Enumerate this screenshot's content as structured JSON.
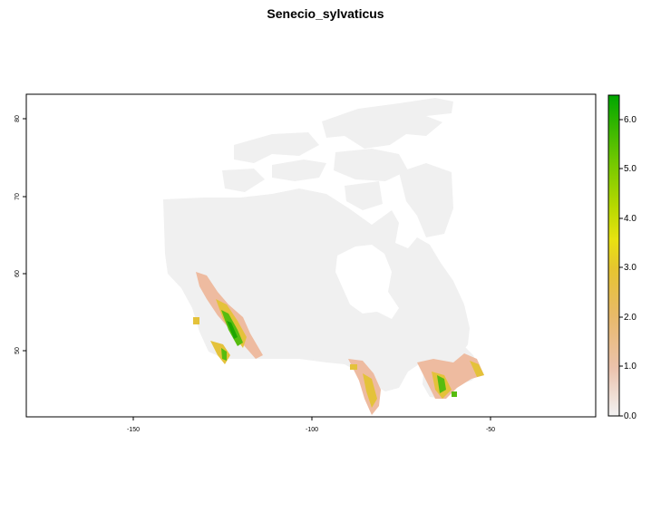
{
  "title": "Senecio_sylvaticus",
  "x_axis": {
    "ticks": [
      "-150",
      "-100",
      "-50"
    ],
    "tick_values": [
      -150,
      -100,
      -50
    ],
    "range": [
      -180,
      -25
    ]
  },
  "y_axis": {
    "ticks": [
      "50",
      "60",
      "70",
      "80"
    ],
    "tick_values": [
      50,
      60,
      70,
      80
    ],
    "range": [
      41.5,
      84
    ]
  },
  "legend": {
    "ticks": [
      "0.0",
      "1.0",
      "2.0",
      "3.0",
      "4.0",
      "5.0",
      "6.0"
    ],
    "tick_values": [
      0,
      1,
      2,
      3,
      4,
      5,
      6
    ],
    "range": [
      0,
      6.5
    ],
    "colors": [
      "#f2f2f2",
      "#ebc2ac",
      "#e8b96a",
      "#e6c52f",
      "#e8e210",
      "#8ed300",
      "#47bf00",
      "#00a600"
    ]
  },
  "colors": {
    "land": "#f0f0f0",
    "low": "#eebba0",
    "mid": "#e4c23a",
    "high": "#56bc0f",
    "top": "#1ea600"
  }
}
